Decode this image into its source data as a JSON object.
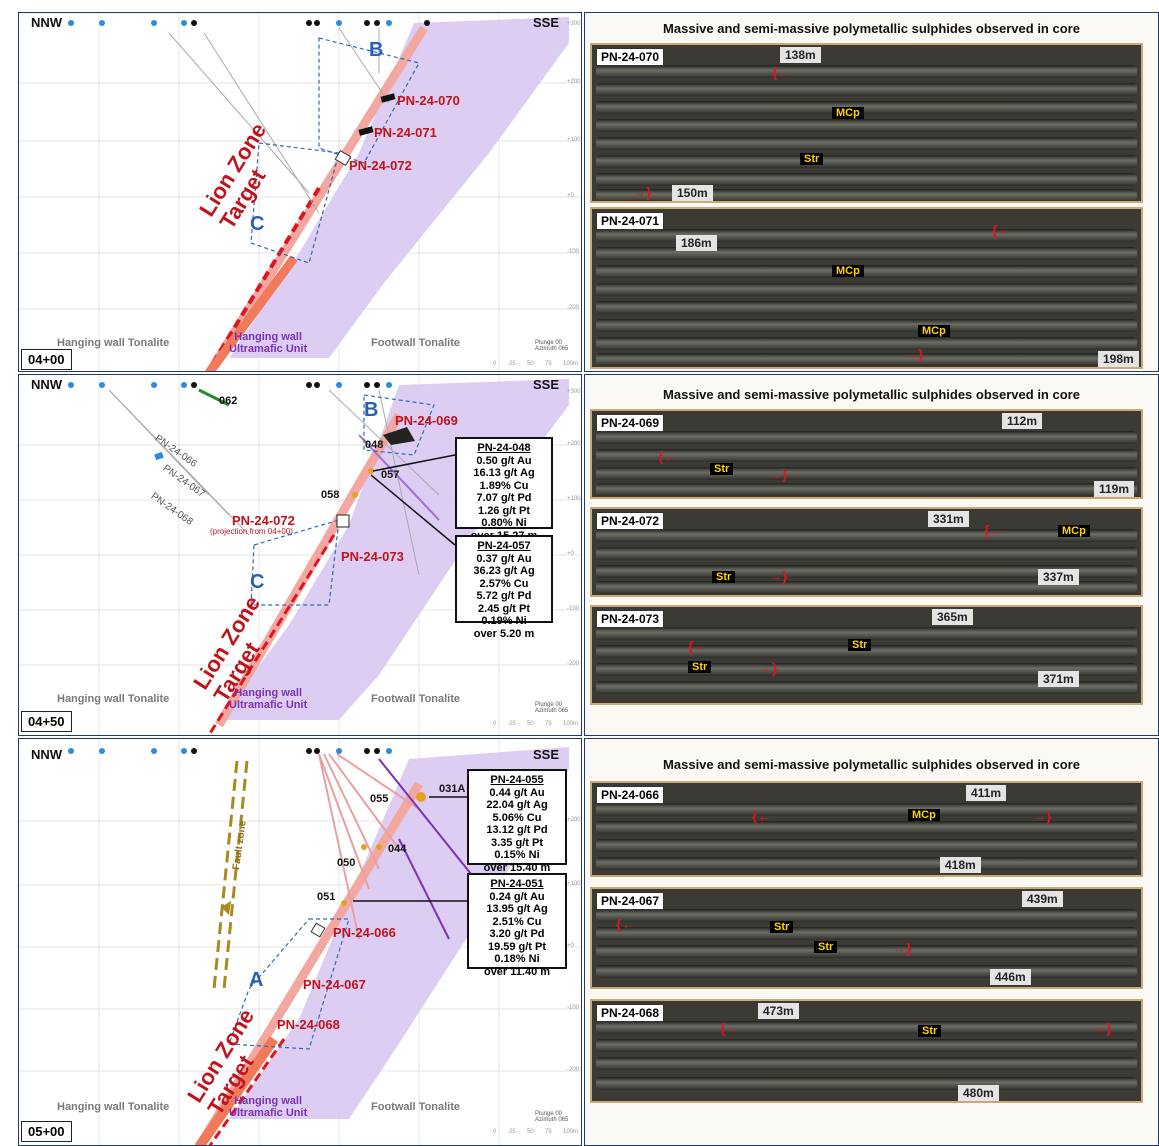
{
  "sections": [
    {
      "id": "04+00",
      "section_label": "04+00",
      "nnw": "NNW",
      "sse": "SSE",
      "zones": [
        "B",
        "C"
      ],
      "holes": [
        "PN-24-070",
        "PN-24-071",
        "PN-24-072"
      ],
      "target_label": "Lion Zone\nTarget",
      "lith_hw": "Hanging wall Tonalite",
      "lith_um": "Hanging wall\nUltramafic Unit",
      "lith_fw": "Footwall Tonalite",
      "plunge": "Plunge 00\nAzimuth 065",
      "scale": [
        "0",
        "25",
        "50",
        "75",
        "100m"
      ],
      "elevations": [
        "+300",
        "+200",
        "+100",
        "+0",
        "-100",
        "-200"
      ]
    },
    {
      "id": "04+50",
      "section_label": "04+50",
      "nnw": "NNW",
      "sse": "SSE",
      "zones": [
        "B",
        "C"
      ],
      "holes": [
        "PN-24-069",
        "PN-24-073"
      ],
      "projected_hole": "PN-24-072",
      "projected_note": "(projection from 04+00)",
      "traces": [
        "PN-24-066",
        "PN-24-067",
        "PN-24-068"
      ],
      "points": [
        "062",
        "048",
        "057",
        "058"
      ],
      "target_label": "Lion Zone\nTarget",
      "lith_hw": "Hanging wall Tonalite",
      "lith_um": "Hanging wall\nUltramafic Unit",
      "lith_fw": "Footwall Tonalite",
      "plunge": "Plunge 00\nAzimuth 065",
      "scale": [
        "0",
        "25",
        "50",
        "75",
        "100m"
      ],
      "elevations": [
        "+300",
        "+200",
        "+100",
        "+0",
        "-100",
        "-200"
      ],
      "assays": [
        {
          "title": "PN-24-048",
          "lines": [
            "0.50 g/t Au",
            "16.13 g/t Ag",
            "1.89% Cu",
            "7.07 g/t Pd",
            "1.26 g/t Pt",
            "0.80% Ni",
            "over 15.27 m"
          ]
        },
        {
          "title": "PN-24-057",
          "lines": [
            "0.37 g/t Au",
            "36.23 g/t Ag",
            "2.57% Cu",
            "5.72 g/t Pd",
            "2.45 g/t Pt",
            "0.19% Ni",
            "over 5.20 m"
          ]
        }
      ]
    },
    {
      "id": "05+00",
      "section_label": "05+00",
      "nnw": "NNW",
      "sse": "SSE",
      "zones": [
        "A"
      ],
      "holes": [
        "PN-24-066",
        "PN-24-067",
        "PN-24-068"
      ],
      "points": [
        "031A",
        "055",
        "044",
        "050",
        "051"
      ],
      "fault_label": "Fault zone",
      "target_label": "Lion Zone\nTarget",
      "lith_hw": "Hanging wall Tonalite",
      "lith_um": "Hanging wall\nUltramafic Unit",
      "lith_fw": "Footwall Tonalite",
      "plunge": "Plunge 00\nAzimuth 065",
      "scale": [
        "0",
        "25",
        "50",
        "75",
        "100m"
      ],
      "elevations": [
        "+200",
        "+100",
        "+0",
        "-100",
        "-200"
      ],
      "assays": [
        {
          "title": "PN-24-055",
          "lines": [
            "0.44 g/t Au",
            "22.04 g/t Ag",
            "5.06% Cu",
            "13.12 g/t Pd",
            "3.35 g/t Pt",
            "0.15% Ni",
            "over 15.40 m"
          ]
        },
        {
          "title": "PN-24-051",
          "lines": [
            "0.24 g/t Au",
            "13.95 g/t Ag",
            "2.51% Cu",
            "3.20 g/t Pd",
            "19.59 g/t Pt",
            "0.18% Ni",
            "over 11.40 m"
          ]
        }
      ]
    }
  ],
  "core_panels": [
    {
      "title": "Massive and semi-massive polymetallic sulphides observed in core",
      "trays": [
        {
          "hole": "PN-24-070",
          "depths": [
            "138m",
            "150m"
          ],
          "minerals": [
            "MCp",
            "Str"
          ]
        },
        {
          "hole": "PN-24-071",
          "depths": [
            "186m",
            "198m"
          ],
          "minerals": [
            "MCp",
            "MCp"
          ]
        }
      ]
    },
    {
      "title": "Massive and semi-massive polymetallic sulphides observed in core",
      "trays": [
        {
          "hole": "PN-24-069",
          "depths": [
            "112m",
            "119m"
          ],
          "minerals": [
            "Str"
          ]
        },
        {
          "hole": "PN-24-072",
          "depths": [
            "331m",
            "337m"
          ],
          "minerals": [
            "MCp",
            "Str"
          ]
        },
        {
          "hole": "PN-24-073",
          "depths": [
            "365m",
            "371m"
          ],
          "minerals": [
            "Str",
            "Str"
          ]
        }
      ]
    },
    {
      "title": "Massive and semi-massive polymetallic sulphides observed in core",
      "trays": [
        {
          "hole": "PN-24-066",
          "depths": [
            "411m",
            "418m"
          ],
          "minerals": [
            "MCp"
          ]
        },
        {
          "hole": "PN-24-067",
          "depths": [
            "439m",
            "446m"
          ],
          "minerals": [
            "Str",
            "Str"
          ]
        },
        {
          "hole": "PN-24-068",
          "depths": [
            "473m",
            "480m"
          ],
          "minerals": [
            "Str"
          ]
        }
      ]
    }
  ],
  "colors": {
    "ultramafic": "#d9c8f2",
    "target_red": "#e0141c",
    "zone_blue": "#2b6cb8",
    "ore_salmon": "#f08a80",
    "panel_border": "#1f3b6b"
  }
}
